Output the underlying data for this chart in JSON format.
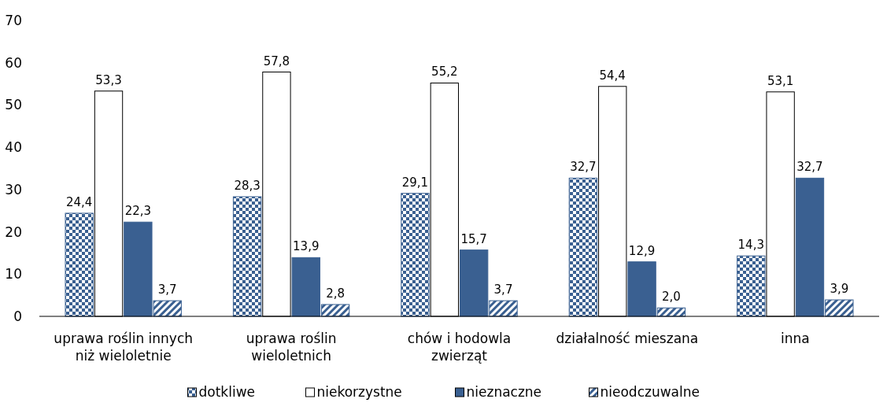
{
  "chart_data": {
    "type": "bar",
    "categories": [
      "uprawa roślin innych niż wieloletnie",
      "uprawa roślin wieloletnich",
      "chów i hodowla zwierząt",
      "działalność mieszana",
      "inna"
    ],
    "series": [
      {
        "name": "dotkliwe",
        "color": "#3a6091",
        "values": [
          24.4,
          28.3,
          29.1,
          32.7,
          14.3
        ],
        "value_labels": [
          "24,4",
          "28,3",
          "29,1",
          "32,7",
          "14,3"
        ]
      },
      {
        "name": "niekorzystne",
        "color": "#ffffff",
        "values": [
          53.3,
          57.8,
          55.2,
          54.4,
          53.1
        ],
        "value_labels": [
          "53,3",
          "57,8",
          "55,2",
          "54,4",
          "53,1"
        ]
      },
      {
        "name": "nieznaczne",
        "color": "#3a6091",
        "values": [
          22.3,
          13.9,
          15.7,
          12.9,
          32.7
        ],
        "value_labels": [
          "22,3",
          "13,9",
          "15,7",
          "12,9",
          "32,7"
        ]
      },
      {
        "name": "nieodczuwalne",
        "color": "#3a6091",
        "values": [
          3.7,
          2.8,
          3.7,
          2.0,
          3.9
        ],
        "value_labels": [
          "3,7",
          "2,8",
          "3,7",
          "2,0",
          "3,9"
        ]
      }
    ],
    "ylim": [
      0,
      70
    ],
    "yticks": [
      0,
      10,
      20,
      30,
      40,
      50,
      60,
      70
    ],
    "legend": "bottom"
  }
}
